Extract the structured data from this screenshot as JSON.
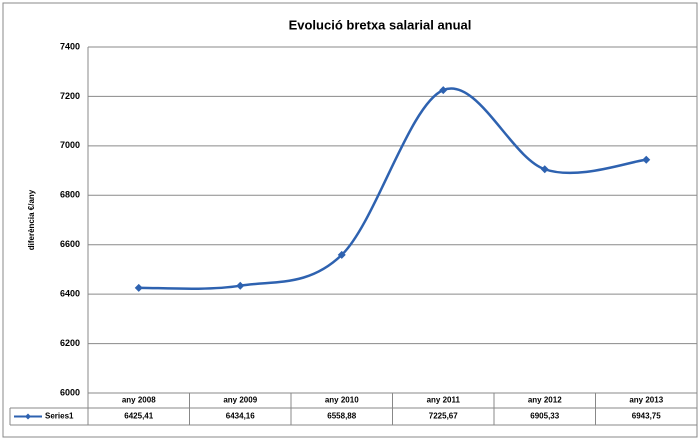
{
  "chart_data": {
    "type": "line",
    "title": "Evolució bretxa salarial anual",
    "y_label": "diferència €/any",
    "categories": [
      "any 2008",
      "any 2009",
      "any 2010",
      "any 2011",
      "any 2012",
      "any 2013"
    ],
    "series": [
      {
        "name": "Series1",
        "color": "#2e62b0",
        "values": [
          6425.41,
          6434.16,
          6558.88,
          7225.67,
          6905.33,
          6943.75
        ],
        "value_labels": [
          "6425,41",
          "6434,16",
          "6558,88",
          "7225,67",
          "6905,33",
          "6943,75"
        ]
      }
    ],
    "ylim": [
      6000,
      7400
    ],
    "yticks": [
      6000,
      6200,
      6400,
      6600,
      6800,
      7000,
      7200,
      7400
    ],
    "grid": true
  }
}
